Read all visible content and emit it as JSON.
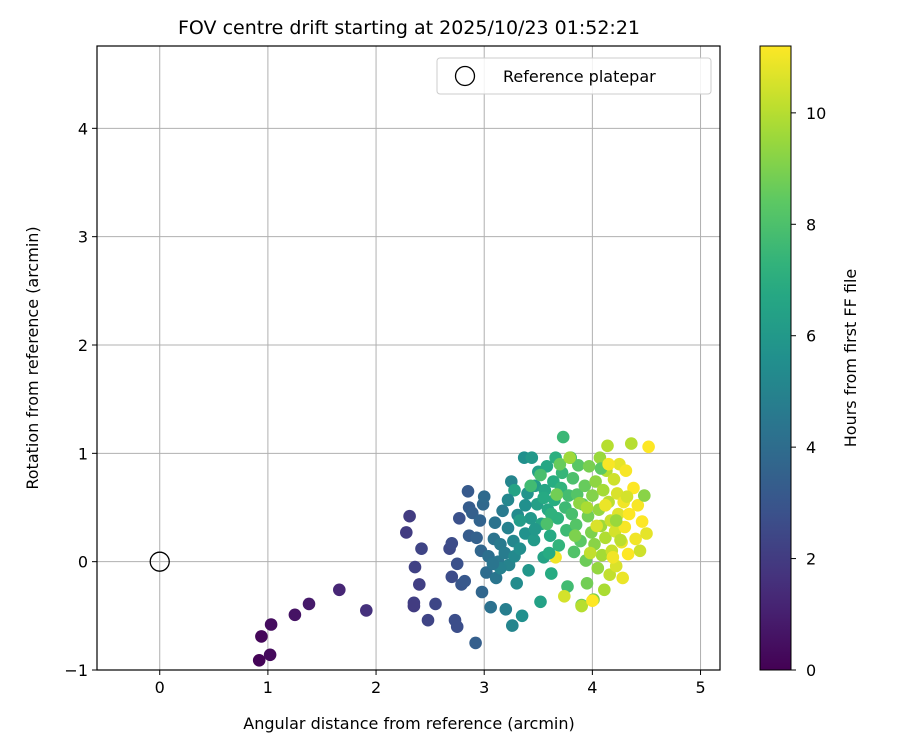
{
  "chart_data": {
    "type": "scatter",
    "title": "FOV centre drift starting at 2025/10/23 01:52:21",
    "xlabel": "Angular distance from reference (arcmin)",
    "ylabel": "Rotation from reference (arcmin)",
    "xlim": [
      -0.58,
      5.18
    ],
    "ylim": [
      -1.0,
      4.76
    ],
    "xticks": [
      0,
      1,
      2,
      3,
      4,
      5
    ],
    "yticks": [
      -1,
      0,
      1,
      2,
      3,
      4
    ],
    "grid": true,
    "legend": {
      "placement": "top-right",
      "entries": [
        "Reference platepar"
      ]
    },
    "reference_point": {
      "x": 0,
      "y": 0,
      "label": "Reference platepar"
    },
    "colorbar": {
      "label": "Hours from first FF file",
      "colormap": "viridis",
      "range": [
        0,
        11.2
      ],
      "ticks": [
        0,
        2,
        4,
        6,
        8,
        10
      ]
    },
    "points": [
      [
        0.92,
        -0.91,
        0.1
      ],
      [
        0.94,
        -0.69,
        0.2
      ],
      [
        1.02,
        -0.86,
        0.3
      ],
      [
        1.03,
        -0.58,
        0.4
      ],
      [
        1.25,
        -0.49,
        0.6
      ],
      [
        1.38,
        -0.39,
        0.8
      ],
      [
        1.66,
        -0.26,
        1.2
      ],
      [
        1.91,
        -0.45,
        1.6
      ],
      [
        2.28,
        0.27,
        2.0
      ],
      [
        2.31,
        0.42,
        2.0
      ],
      [
        2.35,
        -0.38,
        2.1
      ],
      [
        2.35,
        -0.41,
        2.0
      ],
      [
        2.36,
        -0.05,
        2.2
      ],
      [
        2.4,
        -0.21,
        2.1
      ],
      [
        2.42,
        0.12,
        2.3
      ],
      [
        2.48,
        -0.54,
        2.3
      ],
      [
        2.55,
        -0.39,
        2.4
      ],
      [
        2.68,
        0.12,
        2.5
      ],
      [
        2.7,
        0.17,
        2.6
      ],
      [
        2.7,
        -0.14,
        2.6
      ],
      [
        2.73,
        -0.54,
        2.7
      ],
      [
        2.75,
        -0.6,
        2.7
      ],
      [
        2.77,
        0.4,
        2.8
      ],
      [
        2.75,
        -0.02,
        2.8
      ],
      [
        2.79,
        -0.21,
        3.0
      ],
      [
        2.82,
        -0.18,
        3.1
      ],
      [
        2.85,
        0.65,
        3.2
      ],
      [
        2.86,
        0.5,
        3.3
      ],
      [
        2.86,
        0.24,
        3.3
      ],
      [
        2.89,
        0.45,
        3.4
      ],
      [
        2.92,
        -0.75,
        3.4
      ],
      [
        2.93,
        0.22,
        3.5
      ],
      [
        2.96,
        0.38,
        3.6
      ],
      [
        2.97,
        0.1,
        3.7
      ],
      [
        2.98,
        -0.28,
        3.7
      ],
      [
        2.99,
        0.53,
        3.8
      ],
      [
        3.0,
        0.6,
        3.9
      ],
      [
        3.02,
        -0.1,
        4.0
      ],
      [
        3.04,
        0.05,
        4.1
      ],
      [
        3.06,
        -0.42,
        4.2
      ],
      [
        3.09,
        0.21,
        4.3
      ],
      [
        3.1,
        0.36,
        4.3
      ],
      [
        3.11,
        -0.15,
        4.4
      ],
      [
        3.13,
        0.0,
        4.5
      ],
      [
        3.15,
        0.16,
        4.6
      ],
      [
        3.17,
        0.47,
        4.6
      ],
      [
        3.19,
        0.08,
        4.7
      ],
      [
        3.2,
        -0.44,
        4.8
      ],
      [
        3.22,
        0.31,
        4.9
      ],
      [
        3.23,
        -0.03,
        5.0
      ],
      [
        3.25,
        0.74,
        5.1
      ],
      [
        3.26,
        -0.59,
        5.1
      ],
      [
        3.27,
        0.19,
        5.2
      ],
      [
        3.28,
        0.05,
        5.3
      ],
      [
        3.3,
        -0.2,
        5.4
      ],
      [
        3.31,
        0.43,
        5.4
      ],
      [
        3.33,
        0.12,
        5.5
      ],
      [
        3.35,
        -0.5,
        5.6
      ],
      [
        3.37,
        0.96,
        5.6
      ],
      [
        3.38,
        0.26,
        5.7
      ],
      [
        3.4,
        0.63,
        5.8
      ],
      [
        3.41,
        -0.08,
        5.9
      ],
      [
        3.43,
        0.4,
        6.0
      ],
      [
        3.44,
        0.96,
        6.0
      ],
      [
        3.46,
        0.2,
        6.1
      ],
      [
        3.47,
        0.7,
        6.2
      ],
      [
        3.49,
        0.53,
        6.3
      ],
      [
        3.5,
        0.83,
        6.3
      ],
      [
        3.52,
        -0.37,
        6.4
      ],
      [
        3.53,
        0.35,
        6.5
      ],
      [
        3.55,
        0.04,
        6.5
      ],
      [
        3.56,
        0.66,
        6.6
      ],
      [
        3.58,
        0.88,
        6.7
      ],
      [
        3.59,
        0.48,
        6.7
      ],
      [
        3.61,
        0.24,
        6.8
      ],
      [
        3.62,
        -0.11,
        6.9
      ],
      [
        3.64,
        0.74,
        7.0
      ],
      [
        3.65,
        0.57,
        7.0
      ],
      [
        3.66,
        0.96,
        7.1
      ],
      [
        3.68,
        0.4,
        7.2
      ],
      [
        3.69,
        0.15,
        7.3
      ],
      [
        3.71,
        0.68,
        7.3
      ],
      [
        3.72,
        0.82,
        7.4
      ],
      [
        3.73,
        1.15,
        7.5
      ],
      [
        3.75,
        0.5,
        7.6
      ],
      [
        3.76,
        0.29,
        7.6
      ],
      [
        3.77,
        -0.23,
        7.7
      ],
      [
        3.78,
        0.61,
        7.8
      ],
      [
        3.8,
        0.96,
        7.9
      ],
      [
        3.81,
        0.44,
        7.9
      ],
      [
        3.82,
        0.77,
        8.0
      ],
      [
        3.83,
        0.09,
        8.1
      ],
      [
        3.85,
        0.34,
        8.2
      ],
      [
        3.86,
        0.62,
        8.2
      ],
      [
        3.87,
        0.89,
        8.3
      ],
      [
        3.89,
        0.19,
        8.4
      ],
      [
        3.9,
        -0.4,
        8.5
      ],
      [
        3.91,
        0.53,
        8.5
      ],
      [
        3.93,
        0.7,
        8.6
      ],
      [
        3.94,
        0.01,
        8.7
      ],
      [
        3.95,
        -0.2,
        8.8
      ],
      [
        3.96,
        0.42,
        8.8
      ],
      [
        3.97,
        0.88,
        8.9
      ],
      [
        3.99,
        0.27,
        9.0
      ],
      [
        4.0,
        0.61,
        9.1
      ],
      [
        4.01,
        -0.35,
        9.1
      ],
      [
        4.02,
        0.16,
        9.2
      ],
      [
        4.03,
        0.74,
        9.3
      ],
      [
        4.05,
        -0.06,
        9.4
      ],
      [
        4.06,
        0.48,
        9.4
      ],
      [
        4.07,
        0.96,
        9.5
      ],
      [
        4.08,
        0.33,
        9.6
      ],
      [
        4.09,
        0.06,
        9.7
      ],
      [
        4.1,
        0.66,
        9.7
      ],
      [
        4.11,
        -0.26,
        9.8
      ],
      [
        4.12,
        0.22,
        9.9
      ],
      [
        4.13,
        0.84,
        10.0
      ],
      [
        4.14,
        1.07,
        10.0
      ],
      [
        4.15,
        0.55,
        10.1
      ],
      [
        4.16,
        -0.12,
        10.2
      ],
      [
        4.17,
        0.38,
        10.3
      ],
      [
        4.18,
        0.1,
        10.3
      ],
      [
        4.2,
        0.76,
        10.4
      ],
      [
        4.21,
        0.28,
        10.5
      ],
      [
        4.22,
        -0.04,
        10.6
      ],
      [
        4.23,
        0.63,
        10.6
      ],
      [
        4.24,
        0.44,
        10.7
      ],
      [
        4.25,
        0.9,
        10.8
      ],
      [
        4.27,
        0.18,
        10.9
      ],
      [
        4.28,
        -0.15,
        10.9
      ],
      [
        4.29,
        0.55,
        11.0
      ],
      [
        4.3,
        0.32,
        11.1
      ],
      [
        4.31,
        0.84,
        11.1
      ],
      [
        4.33,
        0.07,
        11.2
      ],
      [
        4.34,
        0.44,
        11.2
      ],
      [
        4.36,
        1.09,
        10.0
      ],
      [
        4.38,
        0.68,
        11.2
      ],
      [
        4.4,
        0.21,
        11.0
      ],
      [
        4.42,
        0.52,
        11.1
      ],
      [
        4.44,
        0.1,
        10.4
      ],
      [
        4.46,
        0.37,
        11.2
      ],
      [
        4.48,
        0.61,
        9.2
      ],
      [
        4.5,
        0.26,
        10.8
      ],
      [
        4.52,
        1.06,
        11.2
      ],
      [
        3.66,
        0.04,
        11.0
      ],
      [
        3.74,
        -0.32,
        10.5
      ],
      [
        3.9,
        -0.41,
        10.0
      ],
      [
        4.0,
        -0.36,
        11.2
      ],
      [
        3.55,
        0.59,
        6.8
      ],
      [
        3.62,
        0.44,
        7.2
      ],
      [
        3.47,
        0.3,
        6.0
      ],
      [
        3.38,
        0.52,
        5.6
      ],
      [
        3.28,
        0.66,
        6.5
      ],
      [
        3.22,
        0.57,
        5.2
      ],
      [
        3.15,
        -0.06,
        4.9
      ],
      [
        3.08,
        -0.02,
        4.4
      ],
      [
        3.33,
        0.38,
        6.2
      ],
      [
        3.7,
        0.9,
        8.6
      ],
      [
        3.79,
        0.96,
        9.6
      ],
      [
        3.88,
        0.54,
        9.3
      ],
      [
        3.98,
        0.08,
        10.2
      ],
      [
        4.04,
        0.33,
        10.6
      ],
      [
        4.12,
        0.52,
        10.9
      ],
      [
        4.19,
        0.04,
        11.0
      ],
      [
        4.26,
        0.2,
        10.1
      ],
      [
        4.32,
        0.6,
        10.5
      ],
      [
        3.58,
        0.35,
        8.0
      ],
      [
        3.67,
        0.62,
        8.8
      ],
      [
        3.84,
        0.24,
        9.0
      ],
      [
        3.52,
        0.8,
        7.9
      ],
      [
        3.43,
        0.7,
        7.7
      ],
      [
        4.08,
        0.86,
        8.4
      ],
      [
        4.15,
        0.9,
        11.1
      ],
      [
        4.22,
        0.38,
        9.5
      ],
      [
        3.95,
        0.5,
        9.8
      ],
      [
        3.6,
        0.08,
        6.9
      ]
    ]
  }
}
